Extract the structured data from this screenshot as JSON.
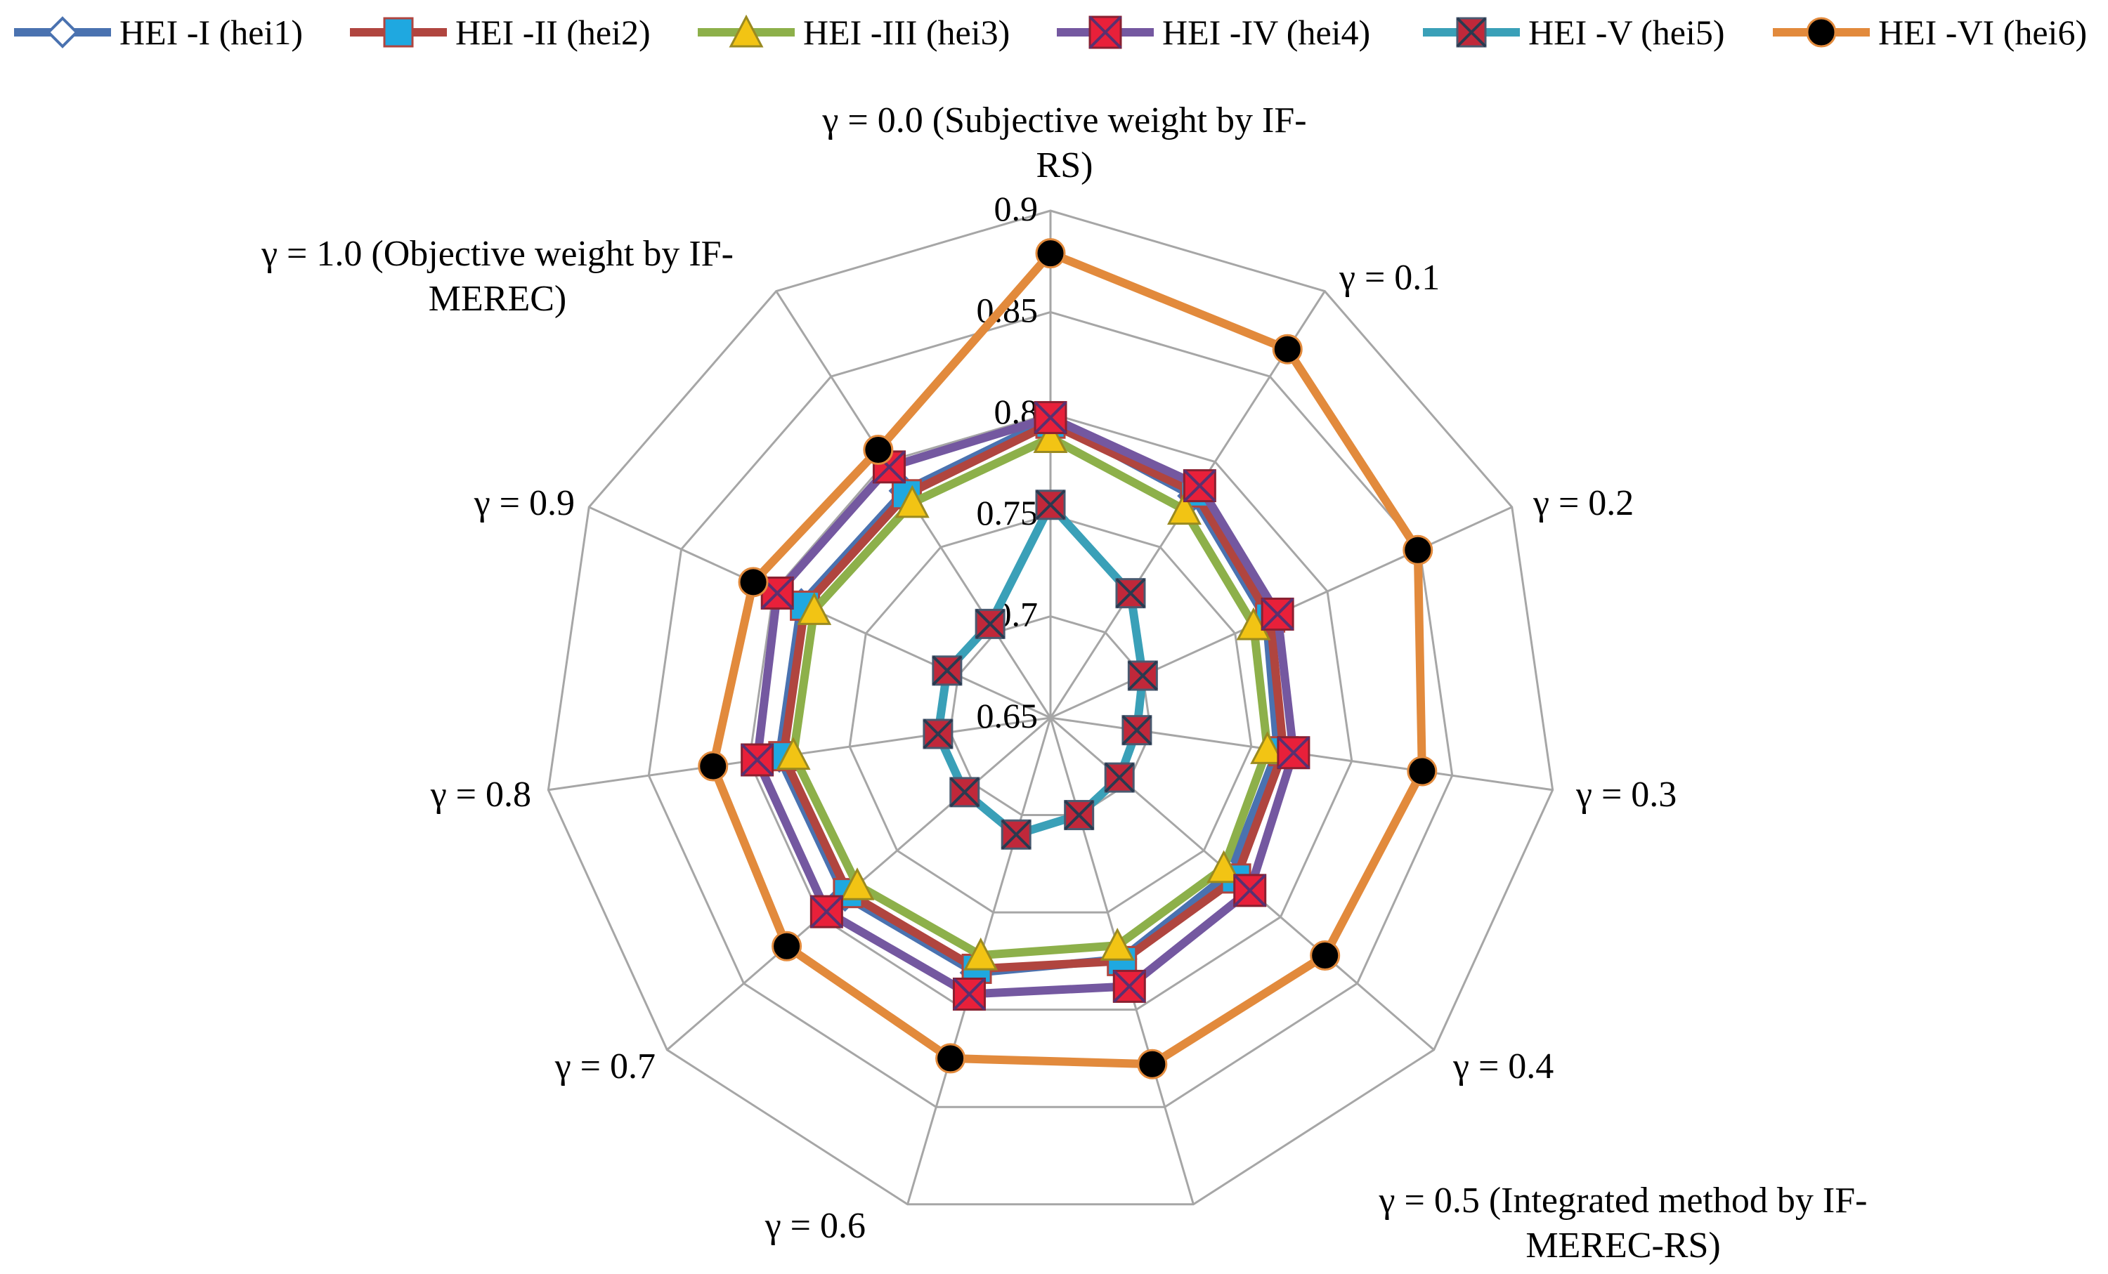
{
  "chart_data": {
    "type": "radar",
    "categories": [
      "γ = 0.0 (Subjective weight by IF-RS)",
      "γ = 0.1",
      "γ = 0.2",
      "γ = 0.3",
      "γ = 0.4",
      "γ = 0.5 (Integrated method by IF-MEREC-RS)",
      "γ = 0.6",
      "γ = 0.7",
      "γ = 0.8",
      "γ = 0.9",
      "γ = 1.0 (Objective weight by IF-MEREC)"
    ],
    "category_label_lines": [
      [
        "γ = 0.0 (Subjective weight by IF-",
        "RS)"
      ],
      [
        "γ = 0.1"
      ],
      [
        "γ = 0.2"
      ],
      [
        "γ = 0.3"
      ],
      [
        "γ = 0.4"
      ],
      [
        "γ = 0.5 (Integrated method by IF-",
        "MEREC-RS)"
      ],
      [
        "γ = 0.6"
      ],
      [
        "γ = 0.7"
      ],
      [
        "γ = 0.8"
      ],
      [
        "γ = 0.9"
      ],
      [
        "γ = 1.0 (Objective weight by IF-",
        "MEREC)"
      ]
    ],
    "r_range": [
      0.65,
      0.9
    ],
    "ticks": [
      "0.65",
      "0.7",
      "0.75",
      "0.8",
      "0.85",
      "0.9"
    ],
    "grid": true,
    "legend_position": "top",
    "series": [
      {
        "name": "HEI -I (hei1)",
        "color": "#4a72b0",
        "marker": "diamond",
        "values": [
          0.797,
          0.78,
          0.767,
          0.763,
          0.767,
          0.774,
          0.781,
          0.784,
          0.785,
          0.785,
          0.783
        ]
      },
      {
        "name": "HEI -II (hei2)",
        "color": "#b0453f",
        "marker": "square",
        "values": [
          0.795,
          0.782,
          0.769,
          0.766,
          0.771,
          0.775,
          0.779,
          0.782,
          0.783,
          0.783,
          0.781
        ]
      },
      {
        "name": "HEI -III (hei3)",
        "color": "#8db04a",
        "marker": "triangle",
        "values": [
          0.788,
          0.772,
          0.76,
          0.758,
          0.763,
          0.767,
          0.772,
          0.776,
          0.778,
          0.778,
          0.776
        ]
      },
      {
        "name": "HEI -IV (hei4)",
        "color": "#7458a0",
        "marker": "xsquare",
        "values": [
          0.798,
          0.786,
          0.773,
          0.771,
          0.78,
          0.788,
          0.792,
          0.796,
          0.796,
          0.798,
          0.797
        ]
      },
      {
        "name": "HEI -V (hei5)",
        "color": "#3aa0b8",
        "marker": "xsquare-dark",
        "values": [
          0.755,
          0.723,
          0.7,
          0.693,
          0.695,
          0.7,
          0.71,
          0.706,
          0.706,
          0.706,
          0.705
        ]
      },
      {
        "name": "HEI -VI (hei6)",
        "color": "#e28a3c",
        "marker": "circle",
        "values": [
          0.879,
          0.866,
          0.849,
          0.835,
          0.829,
          0.828,
          0.825,
          0.822,
          0.818,
          0.811,
          0.807
        ]
      }
    ]
  }
}
